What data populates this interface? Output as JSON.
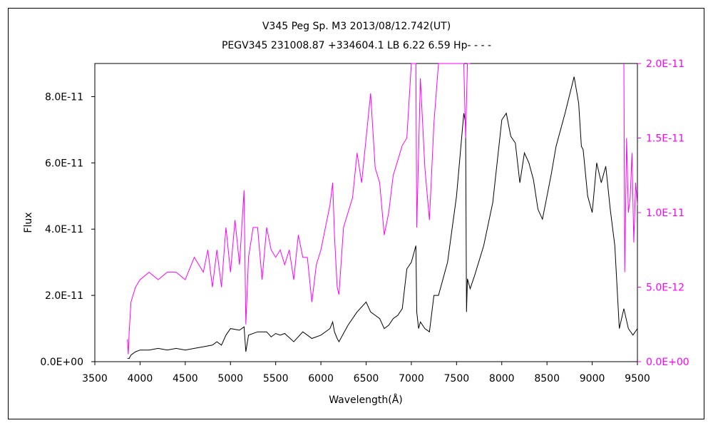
{
  "chart_data": {
    "type": "line",
    "title": "V345 Peg    Sp. M3    2013/08/12.742(UT)",
    "subtitle": "PEGV345 231008.87 +334604.1 LB 6.22 6.59 Hp- - - -",
    "xlabel": "Wavelength(Å)",
    "ylabel": "Flux",
    "xlim": [
      3500,
      9500
    ],
    "ylim": [
      0,
      9e-11
    ],
    "y2lim": [
      0,
      2e-11
    ],
    "xticks": [
      "3500",
      "4000",
      "4500",
      "5000",
      "5500",
      "6000",
      "6500",
      "7000",
      "7500",
      "8000",
      "8500",
      "9000",
      "9500"
    ],
    "yticks": [
      "0.0E+00",
      "2.0E-11",
      "4.0E-11",
      "6.0E-11",
      "8.0E-11"
    ],
    "y2ticks": [
      "0.0E+00",
      "5.0E-12",
      "1.0E-11",
      "1.5E-11",
      "2.0E-11"
    ],
    "colors": {
      "primary": "#000000",
      "secondary": "#ff00ff"
    },
    "series": [
      {
        "axis": "left",
        "color": "#000000",
        "x": [
          3860,
          3880,
          3900,
          3950,
          4000,
          4100,
          4200,
          4300,
          4400,
          4500,
          4600,
          4700,
          4800,
          4850,
          4900,
          4950,
          5000,
          5100,
          5150,
          5170,
          5200,
          5300,
          5400,
          5450,
          5500,
          5550,
          5600,
          5700,
          5800,
          5850,
          5900,
          6000,
          6100,
          6130,
          6150,
          6180,
          6200,
          6300,
          6400,
          6500,
          6550,
          6600,
          6650,
          6700,
          6750,
          6800,
          6850,
          6900,
          6950,
          7000,
          7050,
          7060,
          7080,
          7100,
          7150,
          7200,
          7250,
          7300,
          7400,
          7500,
          7580,
          7600,
          7610,
          7620,
          7650,
          7700,
          7800,
          7900,
          8000,
          8050,
          8100,
          8150,
          8200,
          8250,
          8300,
          8350,
          8400,
          8450,
          8500,
          8550,
          8600,
          8700,
          8800,
          8850,
          8880,
          8900,
          8950,
          9000,
          9050,
          9100,
          9150,
          9200,
          9250,
          9300,
          9350,
          9400,
          9450,
          9500
        ],
        "y": [
          1e-12,
          1e-12,
          2e-12,
          3e-12,
          3.5e-12,
          3.5e-12,
          4e-12,
          3.5e-12,
          4e-12,
          3.5e-12,
          4e-12,
          4.5e-12,
          5e-12,
          6e-12,
          5e-12,
          8e-12,
          1e-11,
          9.5e-12,
          1.05e-11,
          3e-12,
          8e-12,
          9e-12,
          9e-12,
          7.5e-12,
          8.5e-12,
          8e-12,
          8.5e-12,
          6e-12,
          9e-12,
          8e-12,
          7e-12,
          8e-12,
          1e-11,
          1.2e-11,
          9e-12,
          7e-12,
          6e-12,
          1.1e-11,
          1.5e-11,
          1.8e-11,
          1.5e-11,
          1.4e-11,
          1.3e-11,
          1e-11,
          1.1e-11,
          1.3e-11,
          1.4e-11,
          1.6e-11,
          2.8e-11,
          3e-11,
          3.5e-11,
          1.5e-11,
          1e-11,
          1.2e-11,
          1e-11,
          9e-12,
          2e-11,
          2e-11,
          3e-11,
          5e-11,
          7.5e-11,
          7.2e-11,
          1.5e-11,
          2.5e-11,
          2.2e-11,
          2.6e-11,
          3.5e-11,
          4.8e-11,
          7.3e-11,
          7.5e-11,
          6.8e-11,
          6.6e-11,
          5.4e-11,
          6.3e-11,
          6e-11,
          5.5e-11,
          4.6e-11,
          4.3e-11,
          5e-11,
          5.7e-11,
          6.5e-11,
          7.5e-11,
          8.6e-11,
          7.8e-11,
          6.5e-11,
          6.4e-11,
          5e-11,
          4.5e-11,
          6e-11,
          5.4e-11,
          5.9e-11,
          4.6e-11,
          3.5e-11,
          1e-11,
          1.6e-11,
          1e-11,
          8e-12,
          1e-11
        ]
      },
      {
        "axis": "right",
        "color": "#ff00ff",
        "x": [
          3860,
          3870,
          3880,
          3900,
          3950,
          4000,
          4100,
          4200,
          4300,
          4400,
          4500,
          4600,
          4700,
          4750,
          4800,
          4850,
          4900,
          4950,
          5000,
          5050,
          5100,
          5150,
          5170,
          5200,
          5250,
          5300,
          5350,
          5400,
          5450,
          5500,
          5550,
          5600,
          5650,
          5700,
          5750,
          5800,
          5850,
          5900,
          5950,
          6000,
          6050,
          6100,
          6130,
          6150,
          6180,
          6200,
          6250,
          6300,
          6350,
          6400,
          6450,
          6500,
          6550,
          6600,
          6650,
          6700,
          6750,
          6800,
          6850,
          6900,
          6950,
          7000,
          7050,
          7060,
          7100,
          7150,
          7200,
          7250,
          7300,
          7350,
          7400,
          7450,
          7500,
          7580,
          7600,
          7620,
          7650
        ],
        "y": [
          1.5e-12,
          5e-13,
          2e-12,
          4e-12,
          5e-12,
          5.5e-12,
          6e-12,
          5.5e-12,
          6e-12,
          6e-12,
          5.5e-12,
          7e-12,
          6e-12,
          7.5e-12,
          5e-12,
          7.5e-12,
          5e-12,
          9e-12,
          6e-12,
          9.5e-12,
          6.5e-12,
          1.15e-11,
          2.5e-12,
          7e-12,
          9e-12,
          9e-12,
          5.5e-12,
          9e-12,
          7.5e-12,
          7e-12,
          7.5e-12,
          6.5e-12,
          7.5e-12,
          5.5e-12,
          8.5e-12,
          7e-12,
          7e-12,
          4e-12,
          6.5e-12,
          7.5e-12,
          9e-12,
          1.05e-11,
          1.2e-11,
          8.5e-12,
          5e-12,
          4.5e-12,
          9e-12,
          1e-11,
          1.1e-11,
          1.4e-11,
          1.2e-11,
          1.5e-11,
          1.8e-11,
          1.3e-11,
          1.2e-11,
          8.5e-12,
          1e-11,
          1.25e-11,
          1.35e-11,
          1.45e-11,
          1.5e-11,
          2e-11,
          2e-11,
          9e-12,
          1.9e-11,
          1.3e-11,
          9.5e-12,
          1.6e-11,
          2e-11,
          2e-11,
          2e-11,
          2e-11,
          2e-11,
          2e-11,
          1.5e-11,
          2e-11,
          2e-11
        ]
      },
      {
        "axis": "right",
        "color": "#ff00ff",
        "x": [
          9350,
          9360,
          9380,
          9400,
          9420,
          9440,
          9460,
          9480,
          9500
        ],
        "y": [
          2e-11,
          6e-12,
          1.5e-11,
          1e-11,
          1.1e-11,
          1.4e-11,
          8e-12,
          1.2e-11,
          1.05e-11
        ]
      }
    ]
  }
}
